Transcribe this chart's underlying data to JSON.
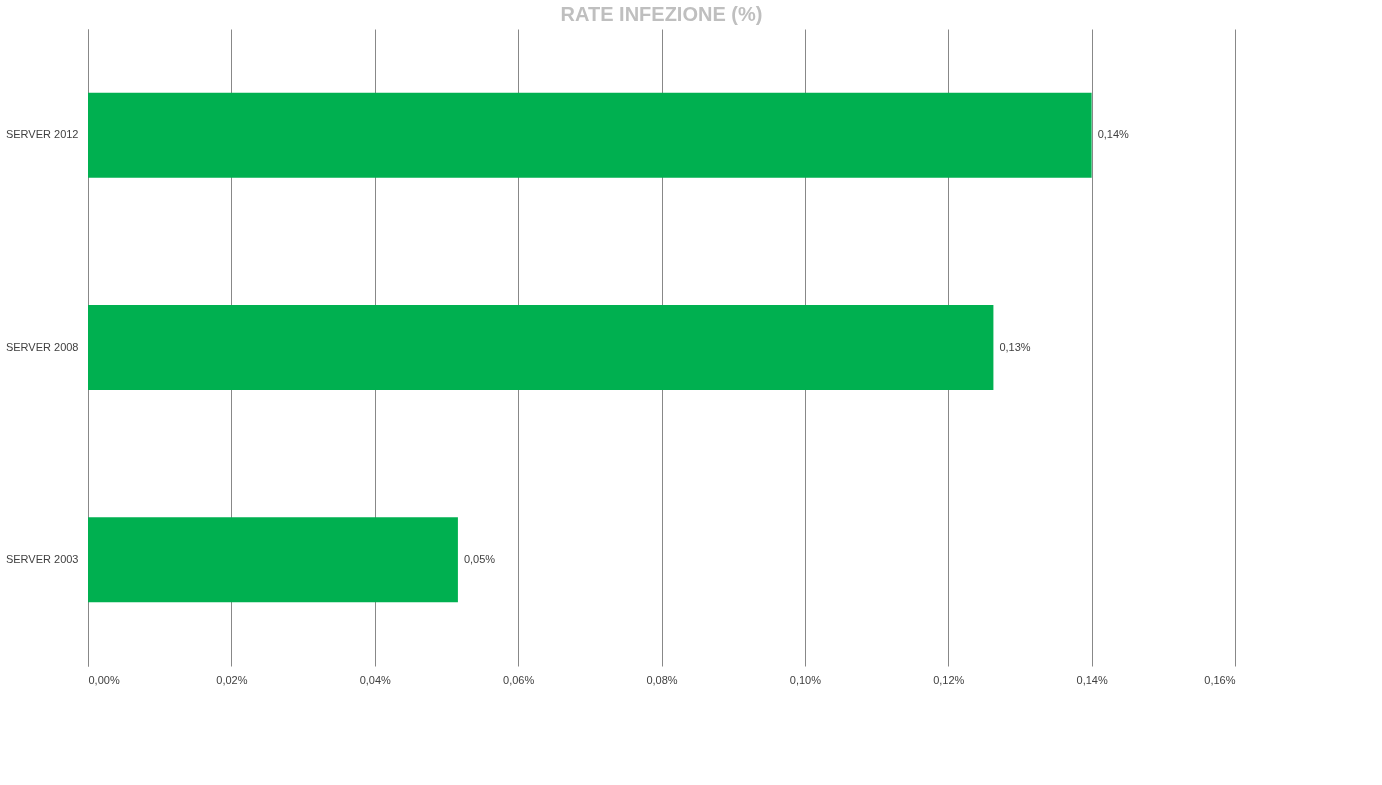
{
  "chart_data": {
    "type": "bar",
    "orientation": "horizontal",
    "title": "RATE INFEZIONE (%)",
    "categories": [
      "SERVER 2012",
      "SERVER 2008",
      "SERVER 2003"
    ],
    "values": [
      0.14,
      0.1263,
      0.0516
    ],
    "value_labels": [
      "0,14%",
      "0,13%",
      "0,05%"
    ],
    "color": "#00b050",
    "xlim": [
      0,
      0.16
    ],
    "xticks": [
      {
        "value": 0,
        "label": "0,00%"
      },
      {
        "value": 0.02,
        "label": "0,02%"
      },
      {
        "value": 0.04,
        "label": "0,04%"
      },
      {
        "value": 0.06,
        "label": "0,06%"
      },
      {
        "value": 0.08,
        "label": "0,08%"
      },
      {
        "value": 0.1,
        "label": "0,10%"
      },
      {
        "value": 0.12,
        "label": "0,12%"
      },
      {
        "value": 0.14,
        "label": "0,14%"
      },
      {
        "value": 0.16,
        "label": "0,16%"
      }
    ],
    "grid": "x"
  }
}
